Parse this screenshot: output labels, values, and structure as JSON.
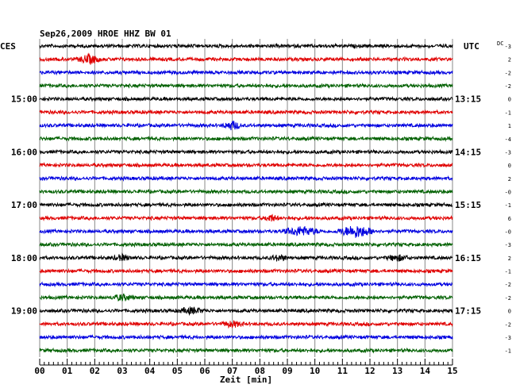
{
  "chart_data": {
    "type": "line",
    "title": "Sep26,2009   HROE HHZ BW 01",
    "left_label": "CES",
    "right_label": "UTC",
    "dc_label": "DC",
    "xlabel": "Zeit [min]",
    "xlim": [
      0,
      15
    ],
    "x_ticks": [
      "00",
      "01",
      "02",
      "03",
      "04",
      "05",
      "06",
      "07",
      "08",
      "09",
      "10",
      "11",
      "12",
      "13",
      "14",
      "15"
    ],
    "grid": true,
    "rows_per_hour": 4,
    "trace_colors": [
      "#000000",
      "#e00000",
      "#0000e0",
      "#006000"
    ],
    "left_hour_labels": [
      {
        "row": 4,
        "label": "15:00"
      },
      {
        "row": 8,
        "label": "16:00"
      },
      {
        "row": 12,
        "label": "17:00"
      },
      {
        "row": 16,
        "label": "18:00"
      },
      {
        "row": 20,
        "label": "19:00"
      }
    ],
    "right_time_labels": [
      {
        "row": 4,
        "label": "13:15"
      },
      {
        "row": 8,
        "label": "14:15"
      },
      {
        "row": 12,
        "label": "15:15"
      },
      {
        "row": 16,
        "label": "16:15"
      },
      {
        "row": 20,
        "label": "17:15"
      }
    ],
    "dc_offsets": [
      "-3",
      "2",
      "-2",
      "-2",
      "0",
      "-1",
      "1",
      "-4",
      "-3",
      "0",
      "2",
      "-0",
      "-1",
      "6",
      "-0",
      "-3",
      "2",
      "-1",
      "-2",
      "-2",
      "0",
      "-2",
      "-3",
      "-1"
    ],
    "events": [
      {
        "row": 1,
        "minute": 1.8,
        "amp": 1.6,
        "width": 0.5
      },
      {
        "row": 6,
        "minute": 7.0,
        "amp": 1.5,
        "width": 0.4
      },
      {
        "row": 13,
        "minute": 8.4,
        "amp": 1.2,
        "width": 0.3
      },
      {
        "row": 14,
        "minute": 9.5,
        "amp": 1.6,
        "width": 0.8
      },
      {
        "row": 14,
        "minute": 11.5,
        "amp": 2.2,
        "width": 0.8
      },
      {
        "row": 16,
        "minute": 3.0,
        "amp": 1.0,
        "width": 0.4
      },
      {
        "row": 16,
        "minute": 8.7,
        "amp": 1.0,
        "width": 0.4
      },
      {
        "row": 16,
        "minute": 13.0,
        "amp": 1.0,
        "width": 0.5
      },
      {
        "row": 19,
        "minute": 3.0,
        "amp": 1.0,
        "width": 0.5
      },
      {
        "row": 20,
        "minute": 5.5,
        "amp": 1.0,
        "width": 0.6
      },
      {
        "row": 21,
        "minute": 7.0,
        "amp": 1.0,
        "width": 0.5
      }
    ]
  }
}
